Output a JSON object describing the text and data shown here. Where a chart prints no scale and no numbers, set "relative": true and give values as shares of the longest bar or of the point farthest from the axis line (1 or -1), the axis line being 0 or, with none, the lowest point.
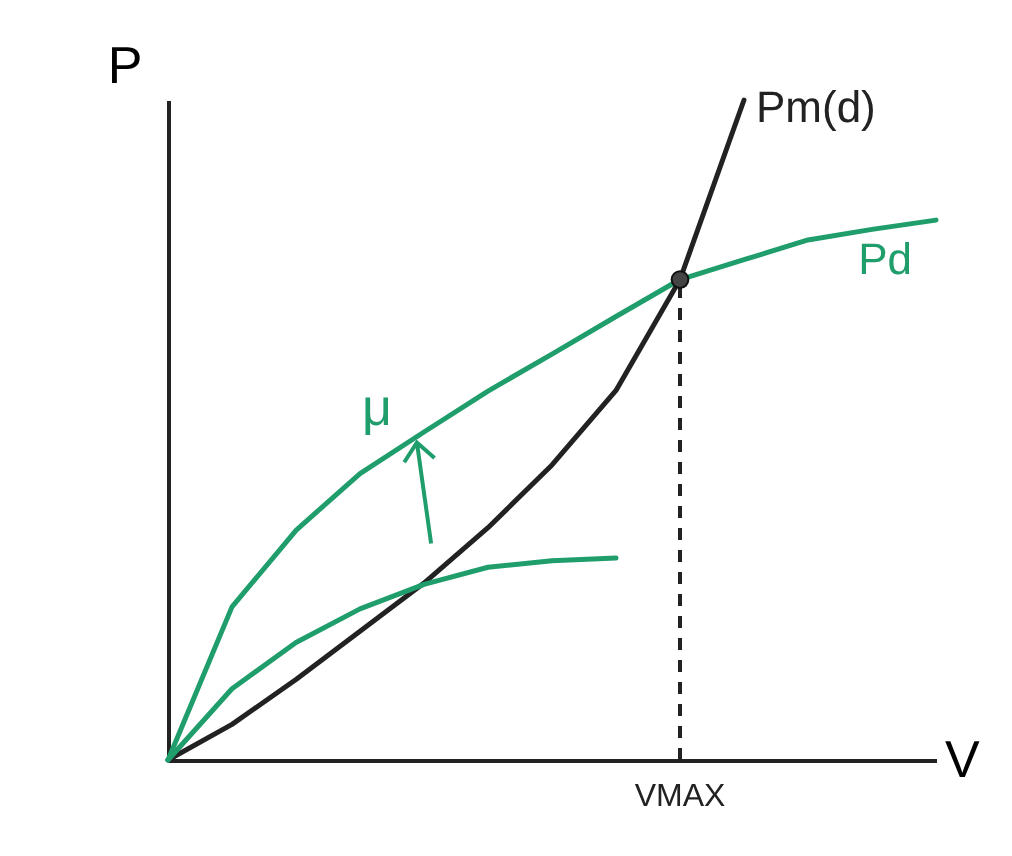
{
  "chart_data": {
    "type": "line",
    "relative": true,
    "xlabel": "V",
    "ylabel": "P",
    "categories": [
      null,
      null,
      null,
      null,
      null,
      null,
      null,
      null,
      null,
      null,
      null,
      null,
      null
    ],
    "series": [
      {
        "name": "Pm(d)",
        "color": "#222222",
        "values": [
          0,
          0.054,
          0.122,
          0.195,
          0.268,
          0.352,
          0.447,
          0.56,
          0.728,
          1,
          null,
          null,
          null
        ]
      },
      {
        "name": "Pd",
        "color": "#1f9e6c",
        "values": [
          0,
          0.232,
          0.348,
          0.434,
          0.497,
          0.559,
          0.615,
          0.672,
          0.728,
          0.758,
          0.788,
          0.804,
          0.818
        ]
      },
      {
        "color": "#1f9e6c",
        "values": [
          0,
          0.108,
          0.178,
          0.229,
          0.266,
          0.292,
          0.302,
          0.306,
          null,
          null,
          null,
          null,
          null
        ]
      }
    ],
    "annotations": [
      "μ",
      "VMAX"
    ],
    "grid": false
  }
}
